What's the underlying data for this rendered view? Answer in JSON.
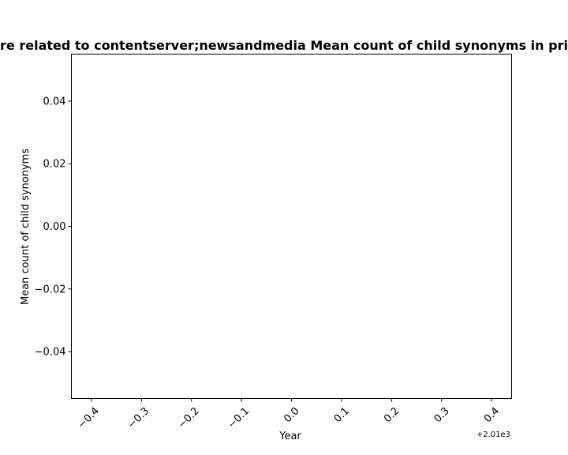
{
  "chart_data": {
    "type": "line",
    "title": "re related to contentserver;newsandmedia Mean count of child synonyms in pri",
    "xlabel": "Year",
    "ylabel": "Mean count of child synonyms",
    "x_offset_label": "+2.01e3",
    "xlim": [
      -0.44,
      0.44
    ],
    "ylim": [
      -0.055,
      0.055
    ],
    "x_ticks": [
      -0.4,
      -0.3,
      -0.2,
      -0.1,
      0.0,
      0.1,
      0.2,
      0.3,
      0.4
    ],
    "x_tick_labels": [
      "−0.4",
      "−0.3",
      "−0.2",
      "−0.1",
      "0.0",
      "0.1",
      "0.2",
      "0.3",
      "0.4"
    ],
    "y_ticks": [
      0.04,
      0.02,
      0.0,
      -0.02,
      -0.04
    ],
    "y_tick_labels": [
      "0.04",
      "0.02",
      "0.00",
      "−0.02",
      "−0.04"
    ],
    "series": [],
    "grid": false
  }
}
